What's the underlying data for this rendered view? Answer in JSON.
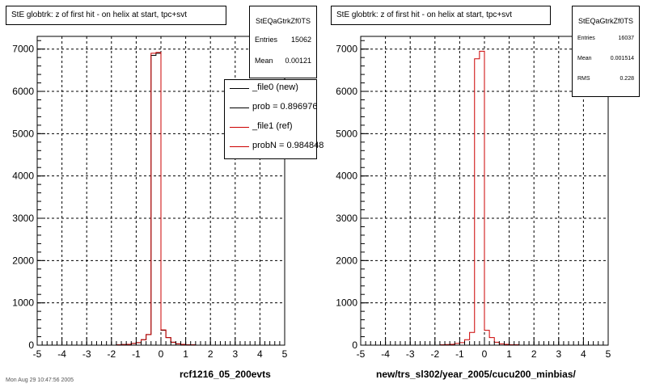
{
  "footnote": "Mon Aug 29 10:47:56 2005",
  "colors": {
    "new": "#000000",
    "ref": "#cc0000"
  },
  "left": {
    "title": "StE globtrk: z of first hit - on helix at start, tpc+svt",
    "stats": {
      "name": "StEQaGtrkZf0TS",
      "rows": [
        {
          "label": "Entries",
          "value": "15062"
        },
        {
          "label": "Mean",
          "value": "0.00121"
        }
      ]
    },
    "legend": [
      {
        "label": "_file0 (new)",
        "color": "#000000"
      },
      {
        "label": "prob = 0.896976",
        "color": "#000000"
      },
      {
        "label": "_file1 (ref)",
        "color": "#cc0000"
      },
      {
        "label": "probN = 0.984848",
        "color": "#cc0000"
      }
    ],
    "footer": "rcf1216_05_200evts"
  },
  "right": {
    "title": "StE globtrk: z of first hit - on helix at start, tpc+svt",
    "stats": {
      "name": "StEQaGtrkZf0TS",
      "rows": [
        {
          "label": "Entries",
          "value": "16037"
        },
        {
          "label": "Mean",
          "value": "0.001514"
        },
        {
          "label": "RMS",
          "value": "0.228"
        }
      ]
    },
    "footer": "new/trs_sl302/year_2005/cucu200_minbias/"
  },
  "chart_data": [
    {
      "type": "line",
      "title": "StE globtrk: z of first hit - on helix at start, tpc+svt",
      "xlim": [
        -5,
        5
      ],
      "ylim": [
        0,
        7300
      ],
      "xticks": [
        "-5",
        "-4",
        "-3",
        "-2",
        "-1",
        "0",
        "1",
        "2",
        "3",
        "4",
        "5"
      ],
      "yticks": [
        "0",
        "1000",
        "2000",
        "3000",
        "4000",
        "5000",
        "6000",
        "7000"
      ],
      "grid": true,
      "bin_edges": [
        -5,
        -4.8,
        -4.6,
        -4.4,
        -4.2,
        -4,
        -3.8,
        -3.6,
        -3.4,
        -3.2,
        -3,
        -2.8,
        -2.6,
        -2.4,
        -2.2,
        -2,
        -1.8,
        -1.6,
        -1.4,
        -1.2,
        -1,
        -0.8,
        -0.6,
        -0.4,
        -0.2,
        0,
        0.2,
        0.4,
        0.6,
        0.8,
        1,
        1.2,
        1.4,
        1.6,
        1.8,
        2,
        2.2,
        2.4,
        2.6,
        2.8,
        3,
        3.2,
        3.4,
        3.6,
        3.8,
        4,
        4.2,
        4.4,
        4.6,
        4.8,
        5
      ],
      "series": [
        {
          "name": "_file0 (new)",
          "color": "#000000",
          "values": [
            0,
            0,
            0,
            0,
            0,
            0,
            0,
            0,
            0,
            0,
            0,
            0,
            0,
            0,
            0,
            0,
            10,
            15,
            20,
            40,
            60,
            130,
            250,
            6850,
            6900,
            350,
            180,
            70,
            30,
            20,
            10,
            10,
            0,
            0,
            0,
            0,
            0,
            0,
            0,
            0,
            0,
            0,
            0,
            0,
            0,
            0,
            0,
            0,
            0,
            0
          ]
        },
        {
          "name": "_file1 (ref)",
          "color": "#cc0000",
          "values": [
            0,
            0,
            0,
            0,
            0,
            0,
            0,
            0,
            0,
            0,
            0,
            0,
            0,
            0,
            0,
            0,
            10,
            15,
            20,
            40,
            60,
            130,
            250,
            6900,
            6920,
            360,
            180,
            70,
            30,
            20,
            10,
            10,
            0,
            0,
            0,
            0,
            0,
            0,
            0,
            0,
            0,
            0,
            0,
            0,
            0,
            0,
            0,
            0,
            0,
            0
          ]
        }
      ]
    },
    {
      "type": "line",
      "title": "StE globtrk: z of first hit - on helix at start, tpc+svt",
      "xlim": [
        -5,
        5
      ],
      "ylim": [
        0,
        7300
      ],
      "xticks": [
        "-5",
        "-4",
        "-3",
        "-2",
        "-1",
        "0",
        "1",
        "2",
        "3",
        "4",
        "5"
      ],
      "yticks": [
        "0",
        "1000",
        "2000",
        "3000",
        "4000",
        "5000",
        "6000",
        "7000"
      ],
      "grid": true,
      "bin_edges": [
        -5,
        -4.8,
        -4.6,
        -4.4,
        -4.2,
        -4,
        -3.8,
        -3.6,
        -3.4,
        -3.2,
        -3,
        -2.8,
        -2.6,
        -2.4,
        -2.2,
        -2,
        -1.8,
        -1.6,
        -1.4,
        -1.2,
        -1,
        -0.8,
        -0.6,
        -0.4,
        -0.2,
        0,
        0.2,
        0.4,
        0.6,
        0.8,
        1,
        1.2,
        1.4,
        1.6,
        1.8,
        2,
        2.2,
        2.4,
        2.6,
        2.8,
        3,
        3.2,
        3.4,
        3.6,
        3.8,
        4,
        4.2,
        4.4,
        4.6,
        4.8,
        5
      ],
      "series": [
        {
          "color": "#cc0000",
          "values": [
            0,
            0,
            0,
            0,
            0,
            0,
            0,
            0,
            0,
            0,
            0,
            0,
            0,
            0,
            0,
            0,
            10,
            15,
            20,
            40,
            60,
            130,
            300,
            6770,
            6950,
            350,
            180,
            70,
            30,
            20,
            10,
            10,
            0,
            0,
            0,
            0,
            0,
            0,
            0,
            0,
            0,
            0,
            0,
            0,
            0,
            0,
            0,
            0,
            0,
            0
          ]
        }
      ]
    }
  ]
}
